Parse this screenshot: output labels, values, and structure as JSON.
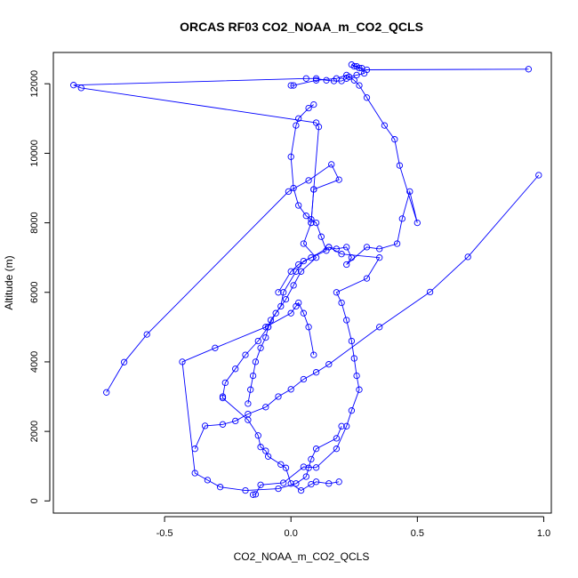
{
  "chart_data": {
    "type": "line",
    "title": "ORCAS RF03 CO2_NOAA_m_CO2_QCLS",
    "xlabel": "CO2_NOAA_m_CO2_QCLS",
    "ylabel": "Altitude (m)",
    "xlim": [
      -0.94,
      1.03
    ],
    "ylim": [
      -350,
      12900
    ],
    "xticks": [
      -0.5,
      0.0,
      0.5,
      1.0
    ],
    "xtick_labels": [
      "-0.5",
      "0.0",
      "0.5",
      "1.0"
    ],
    "yticks": [
      0,
      2000,
      4000,
      6000,
      8000,
      10000,
      12000
    ],
    "ytick_labels": [
      "0",
      "2000",
      "4000",
      "6000",
      "8000",
      "10000",
      "12000"
    ],
    "grid": false,
    "legend": "none",
    "color": "#0000ff",
    "marker": "open-circle",
    "series": [
      {
        "x": [
          -0.73,
          -0.66,
          -0.57,
          -0.01,
          0.07,
          0.16,
          0.19,
          0.09,
          0.08,
          0.05,
          0.1,
          0.04,
          0.01,
          -0.02,
          -0.06,
          -0.09,
          -0.13,
          -0.18,
          -0.22,
          -0.26,
          -0.27,
          -0.27,
          -0.17,
          -0.13,
          -0.12,
          -0.1,
          -0.09,
          -0.04,
          -0.02,
          0.0,
          0.04,
          0.08,
          0.1,
          0.15,
          0.19
        ],
        "y": [
          3120,
          3990,
          4790,
          8900,
          9220,
          9680,
          9240,
          8960,
          8000,
          7400,
          7000,
          6600,
          6200,
          5800,
          5400,
          5000,
          4600,
          4200,
          3800,
          3400,
          3000,
          2960,
          2330,
          1880,
          1550,
          1440,
          1280,
          1050,
          950,
          500,
          300,
          480,
          550,
          500,
          550
        ]
      },
      {
        "x": [
          0.2,
          0.18,
          0.1,
          0.08,
          0.07,
          0.06,
          0.02,
          -0.05,
          -0.18,
          -0.28,
          -0.33,
          -0.38,
          -0.43,
          -0.3,
          -0.1,
          0.0,
          0.02,
          0.03,
          0.05,
          0.07,
          0.09
        ],
        "y": [
          2150,
          1800,
          1500,
          1200,
          950,
          700,
          500,
          350,
          300,
          400,
          600,
          800,
          4000,
          4400,
          5000,
          5400,
          5600,
          5700,
          5400,
          5000,
          4200
        ]
      },
      {
        "x": [
          -0.15,
          -0.14,
          -0.12,
          -0.03,
          0.05,
          0.1,
          0.18,
          0.22,
          0.24,
          0.27,
          0.26,
          0.25,
          0.24,
          0.22,
          0.2,
          0.18,
          0.3,
          0.35,
          0.2,
          0.15,
          0.08,
          0.03,
          0.0,
          -0.05
        ],
        "y": [
          180,
          190,
          460,
          520,
          980,
          960,
          1500,
          2150,
          2600,
          3200,
          3600,
          4100,
          4600,
          5200,
          5700,
          6000,
          6400,
          7000,
          7100,
          7300,
          7000,
          6800,
          6600,
          6000
        ]
      },
      {
        "x": [
          0.15,
          0.18,
          0.22,
          0.24,
          0.22,
          0.3,
          0.35,
          0.42,
          0.44,
          0.47,
          0.5,
          0.43,
          0.41,
          0.37,
          0.3,
          0.27,
          0.25,
          0.22,
          0.18,
          0.1,
          0.01,
          0.0
        ],
        "y": [
          7300,
          7250,
          7300,
          7000,
          6800,
          7300,
          7250,
          7400,
          8120,
          8900,
          8000,
          9650,
          10400,
          10800,
          11600,
          11950,
          12100,
          12250,
          12150,
          12100,
          11950,
          11950
        ]
      },
      {
        "x": [
          0.98,
          0.7,
          0.55,
          0.35,
          0.15,
          0.1,
          0.05,
          0.0,
          -0.05,
          -0.1,
          -0.17,
          -0.22,
          -0.27,
          -0.34,
          -0.38
        ],
        "y": [
          9370,
          7020,
          6010,
          5000,
          3930,
          3700,
          3500,
          3210,
          3000,
          2700,
          2500,
          2300,
          2200,
          2160,
          1500
        ]
      },
      {
        "x": [
          0.94,
          0.3,
          0.27,
          0.25,
          0.24,
          0.26,
          0.28,
          0.29,
          0.26,
          0.23,
          0.22,
          0.2,
          0.17,
          0.14,
          0.1,
          0.06,
          -0.86,
          -0.83,
          0.1,
          0.11,
          0.09,
          0.08
        ],
        "y": [
          12420,
          12400,
          12450,
          12500,
          12550,
          12500,
          12450,
          12300,
          12250,
          12200,
          12150,
          12080,
          12080,
          12100,
          12150,
          12150,
          11960,
          11880,
          10880,
          10760,
          8960,
          8000
        ]
      },
      {
        "x": [
          0.09,
          0.07,
          0.03,
          0.02,
          0.0,
          0.01,
          0.03,
          0.06,
          0.08,
          0.1,
          0.12,
          0.14,
          0.05,
          0.02,
          -0.03,
          -0.04,
          -0.08,
          -0.09,
          -0.1,
          -0.12,
          -0.14,
          -0.15,
          -0.16,
          -0.17
        ],
        "y": [
          11400,
          11300,
          11000,
          10800,
          9900,
          9000,
          8500,
          8200,
          8100,
          8000,
          7600,
          7200,
          6900,
          6600,
          6000,
          5600,
          5200,
          5000,
          4700,
          4400,
          4000,
          3600,
          3200,
          2800
        ]
      }
    ]
  }
}
